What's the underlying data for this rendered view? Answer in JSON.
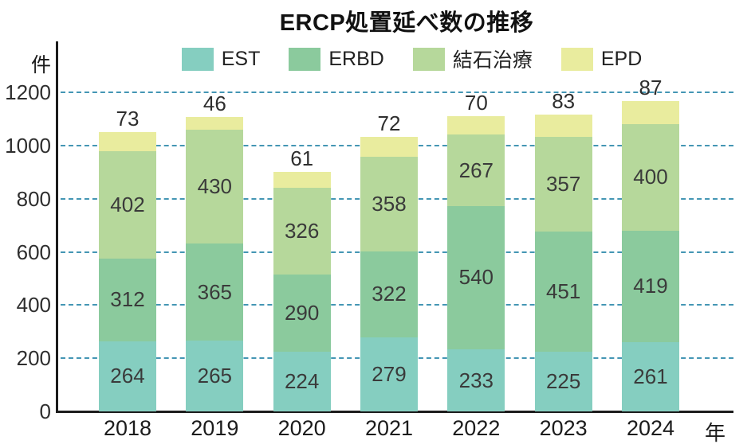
{
  "title": "ERCP処置延べ数の推移",
  "y_axis": {
    "unit_label": "件",
    "ticks": [
      0,
      200,
      400,
      600,
      800,
      1000,
      1200
    ],
    "max": 1200
  },
  "x_axis": {
    "unit_label": "年"
  },
  "legend": {
    "position": "top",
    "entries": [
      "EST",
      "ERBD",
      "結石治療",
      "EPD"
    ]
  },
  "chart_data": {
    "type": "bar",
    "stacked": true,
    "title": "ERCP処置延べ数の推移",
    "ylabel": "件",
    "xlabel": "年",
    "ylim": [
      0,
      1200
    ],
    "ytick_step": 200,
    "grid": "horizontal-dashed",
    "legend_position": "top",
    "categories": [
      "2018",
      "2019",
      "2020",
      "2021",
      "2022",
      "2023",
      "2024"
    ],
    "series": [
      {
        "name": "EST",
        "color": "#85cec0",
        "label_position": "inside",
        "values": [
          264,
          265,
          224,
          279,
          233,
          225,
          261
        ]
      },
      {
        "name": "ERBD",
        "color": "#8bca9d",
        "label_position": "inside",
        "values": [
          312,
          365,
          290,
          322,
          540,
          451,
          419
        ]
      },
      {
        "name": "結石治療",
        "color": "#b6d89b",
        "label_position": "inside",
        "values": [
          402,
          430,
          326,
          358,
          267,
          357,
          400
        ]
      },
      {
        "name": "EPD",
        "color": "#e9ec9e",
        "label_position": "above",
        "values": [
          73,
          46,
          61,
          72,
          70,
          83,
          87
        ]
      }
    ]
  },
  "colors": {
    "grid": "#4496b4",
    "axis": "#1c1c1c",
    "label_text": "#3a3a3a"
  }
}
